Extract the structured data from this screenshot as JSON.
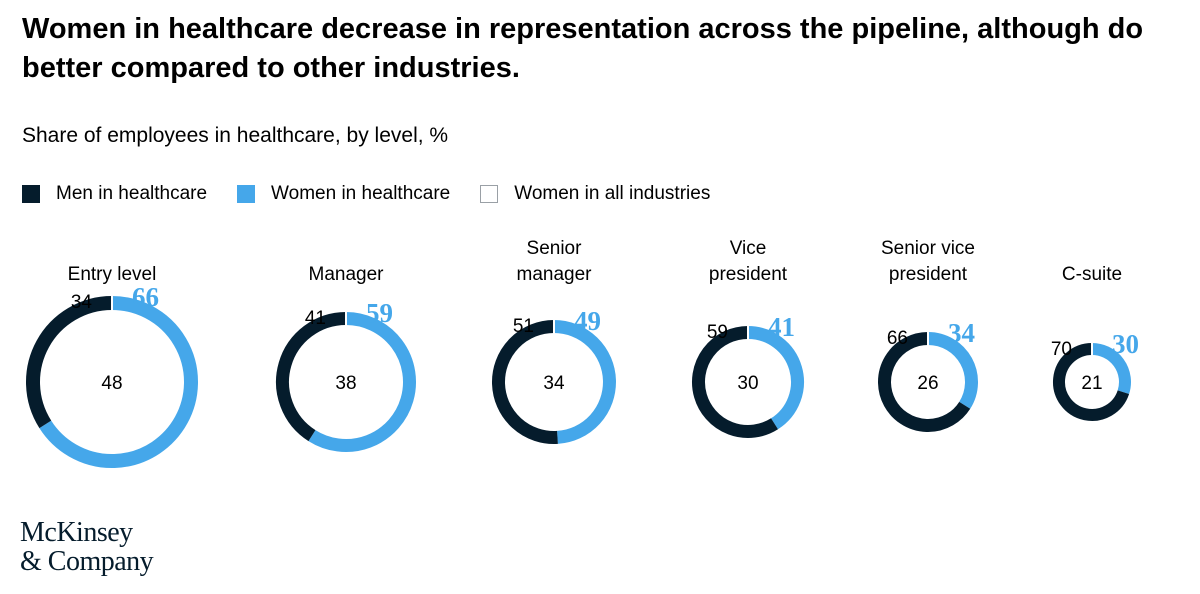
{
  "title": "Women in healthcare decrease in representation across the pipeline, although do better compared to other industries.",
  "subtitle": "Share of employees in healthcare, by level, %",
  "legend": [
    {
      "label": "Men in healthcare",
      "color": "#051c2c",
      "style": "filled"
    },
    {
      "label": "Women in healthcare",
      "color": "#45a7ea",
      "style": "filled"
    },
    {
      "label": "Women in all industries",
      "color": "#ffffff",
      "style": "outline"
    }
  ],
  "chart_data": {
    "type": "pie",
    "variant": "donut",
    "legend_position": "top-left",
    "levels": [
      {
        "label": [
          "Entry level"
        ],
        "men": 34,
        "women": 66,
        "women_all_industries": 48
      },
      {
        "label": [
          "Manager"
        ],
        "men": 41,
        "women": 59,
        "women_all_industries": 38
      },
      {
        "label": [
          "Senior",
          "manager"
        ],
        "men": 51,
        "women": 49,
        "women_all_industries": 34
      },
      {
        "label": [
          "Vice",
          "president"
        ],
        "men": 59,
        "women": 41,
        "women_all_industries": 30
      },
      {
        "label": [
          "Senior vice",
          "president"
        ],
        "men": 66,
        "women": 34,
        "women_all_industries": 26
      },
      {
        "label": [
          "C-suite"
        ],
        "men": 70,
        "women": 30,
        "women_all_industries": 21
      }
    ]
  },
  "colors": {
    "men": "#051c2c",
    "women": "#45a7ea",
    "text_dark": "#000000"
  },
  "logo": {
    "line1": "McKinsey",
    "line2": "& Company"
  }
}
